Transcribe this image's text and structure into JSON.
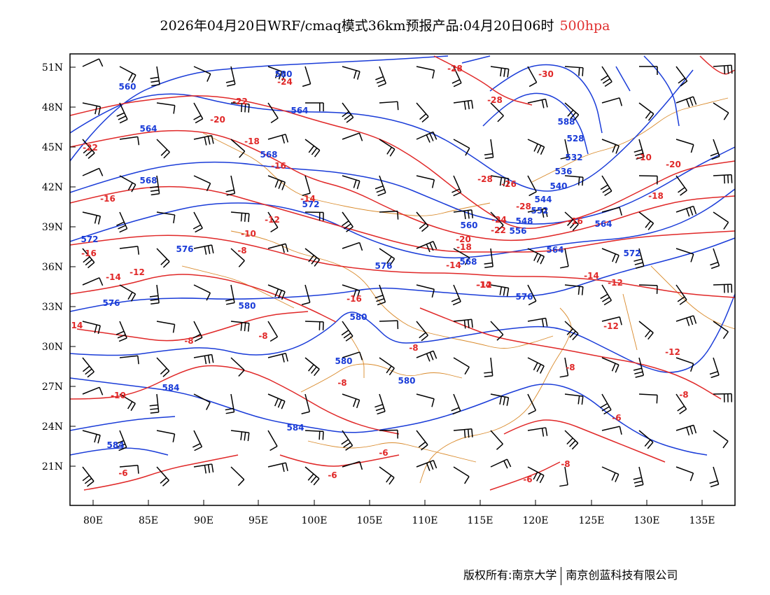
{
  "title": {
    "main": "2026年04月20日WRF/cmaq模式36km预报产品:04月20日06时",
    "level": "500hpa"
  },
  "axes": {
    "lat_labels": [
      "51N",
      "48N",
      "45N",
      "42N",
      "39N",
      "36N",
      "33N",
      "30N",
      "27N",
      "24N",
      "21N"
    ],
    "lon_labels": [
      "80E",
      "85E",
      "90E",
      "95E",
      "100E",
      "105E",
      "110E",
      "115E",
      "120E",
      "125E",
      "130E",
      "135E"
    ]
  },
  "colors": {
    "height": "#1a3cd8",
    "temperature": "#e02828",
    "border": "#d98a2b",
    "barb": "#000000"
  },
  "height_labels": [
    "580",
    "560",
    "564",
    "564",
    "568",
    "568",
    "572",
    "572",
    "576",
    "576",
    "576",
    "580",
    "580",
    "580",
    "580",
    "584",
    "584",
    "584",
    "588",
    "528",
    "532",
    "536",
    "540",
    "544",
    "548",
    "552",
    "556",
    "560",
    "564",
    "564",
    "568",
    "572",
    "576"
  ],
  "temp_labels": [
    "-28",
    "-30",
    "-28",
    "-24",
    "-22",
    "-20",
    "-18",
    "-16",
    "-22",
    "-16",
    "-14",
    "-12",
    "-10",
    "-8",
    "-16",
    "-14",
    "-12",
    "14",
    "-28",
    "-26",
    "-28",
    "-24",
    "-22",
    "-20",
    "-18",
    "-16",
    "-14",
    "-12",
    "-12",
    "-14",
    "-12",
    "-10",
    "-20",
    "-18",
    "-16",
    "-8",
    "-8",
    "-8",
    "-8",
    "-8",
    "-10",
    "-6",
    "-8",
    "-6",
    "-6",
    "-6",
    "-6",
    "-8",
    "-12",
    "-14"
  ],
  "footer": {
    "copyright": "版权所有:南京大学",
    "company": "南京创蓝科技有限公司"
  }
}
